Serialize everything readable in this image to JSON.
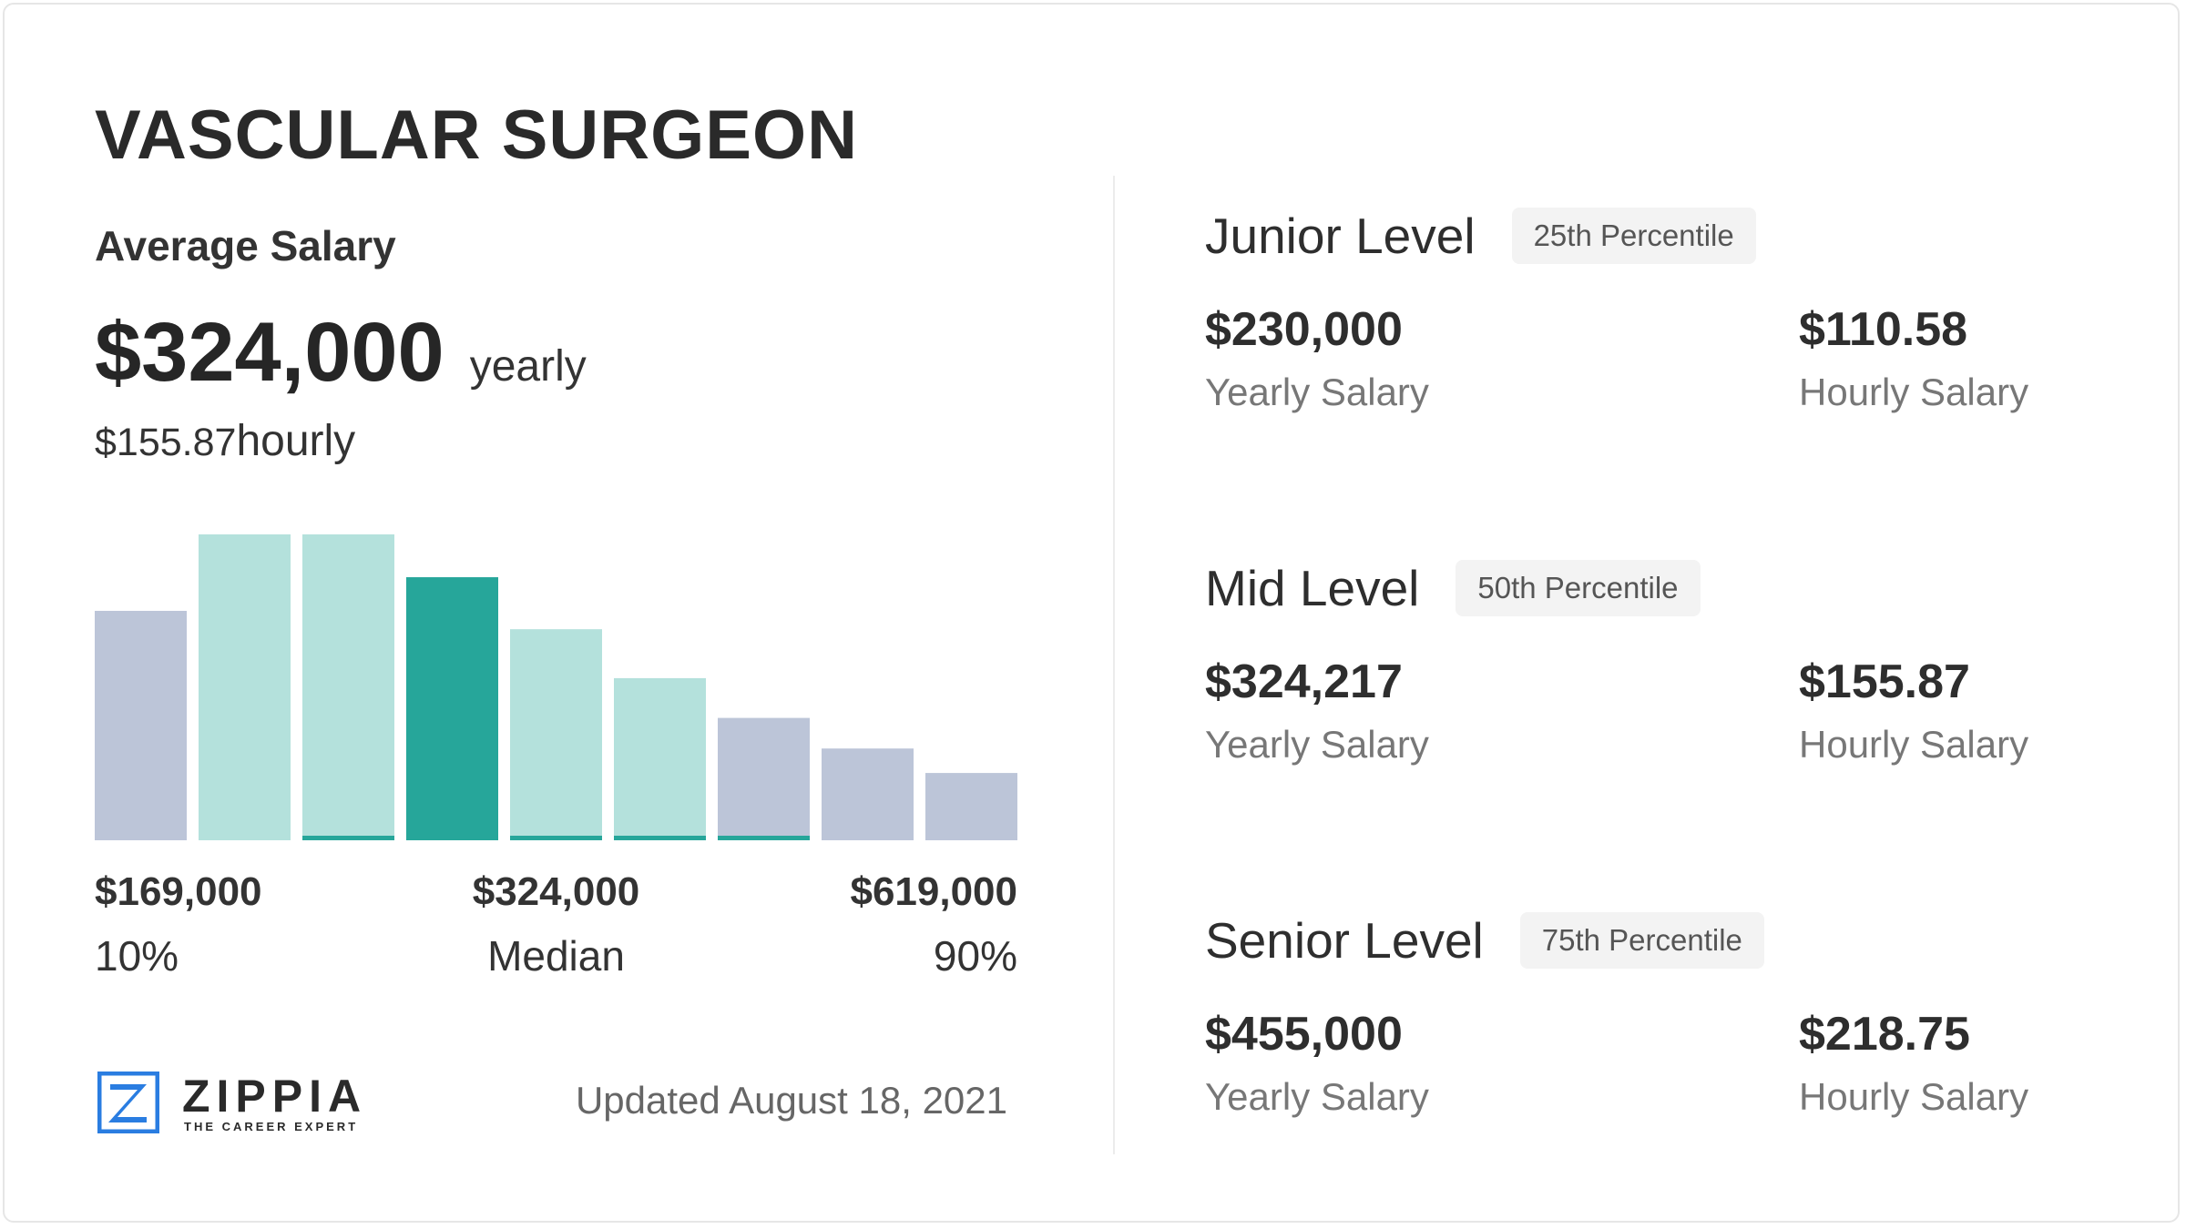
{
  "header": {
    "title": "VASCULAR SURGEON"
  },
  "summary": {
    "label": "Average Salary",
    "yearly": "$324,000",
    "yearly_unit": "yearly",
    "hourly": "$155.87",
    "hourly_unit": "hourly"
  },
  "histogram": {
    "heights": [
      75,
      100,
      100,
      86,
      69,
      53,
      40,
      30,
      22
    ],
    "colors": [
      "#bcc5d8",
      "#b4e1dc",
      "#b4e1dc",
      "#26a69a",
      "#b4e1dc",
      "#b4e1dc",
      "#bcc5d8",
      "#bcc5d8",
      "#bcc5d8"
    ],
    "accented": [
      false,
      false,
      true,
      false,
      true,
      true,
      true,
      false,
      false
    ],
    "accent_color": "#26a69a",
    "markers": [
      {
        "value": "$169,000",
        "label": "10%"
      },
      {
        "value": "$324,000",
        "label": "Median"
      },
      {
        "value": "$619,000",
        "label": "90%"
      }
    ]
  },
  "levels": [
    {
      "name": "Junior Level",
      "percentile": "25th Percentile",
      "yearly": "$230,000",
      "yearly_label": "Yearly Salary",
      "hourly": "$110.58",
      "hourly_label": "Hourly Salary"
    },
    {
      "name": "Mid Level",
      "percentile": "50th Percentile",
      "yearly": "$324,217",
      "yearly_label": "Yearly Salary",
      "hourly": "$155.87",
      "hourly_label": "Hourly Salary"
    },
    {
      "name": "Senior Level",
      "percentile": "75th Percentile",
      "yearly": "$455,000",
      "yearly_label": "Yearly Salary",
      "hourly": "$218.75",
      "hourly_label": "Hourly Salary"
    }
  ],
  "footer": {
    "logo": "ZIPPIA",
    "tagline": "THE CAREER EXPERT",
    "updated": "Updated August 18, 2021"
  }
}
